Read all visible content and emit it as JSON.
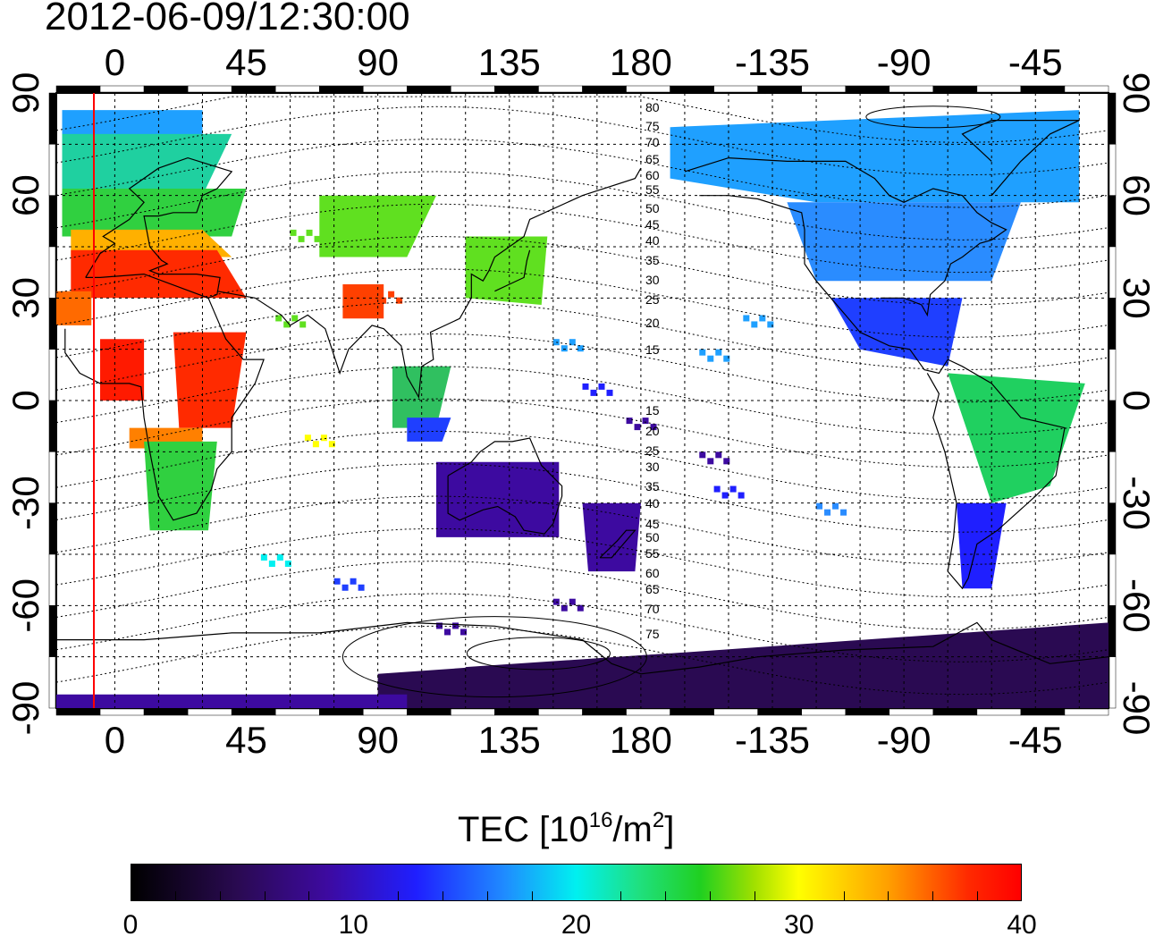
{
  "timestamp": "2012-06-09/12:30:00",
  "map": {
    "lon_labels": [
      "0",
      "45",
      "90",
      "135",
      "180",
      "-135",
      "-90",
      "-45"
    ],
    "lat_labels_left": [
      "90",
      "60",
      "30",
      "0",
      "-30",
      "-60",
      "-90"
    ],
    "lat_labels_right": [
      "90",
      "60",
      "30",
      "0",
      "-30",
      "-60",
      "-90"
    ],
    "contour_labels_north": [
      "80",
      "75",
      "70",
      "65",
      "60",
      "55",
      "50",
      "45",
      "40",
      "35",
      "30",
      "25",
      "20",
      "15"
    ],
    "contour_labels_south": [
      "15",
      "20",
      "25",
      "30",
      "35",
      "40",
      "45",
      "50",
      "55",
      "60",
      "65",
      "70",
      "75"
    ],
    "lon_range": [
      -20,
      340
    ],
    "lat_range": [
      -90,
      90
    ],
    "grid": true,
    "colors": {
      "terminator_line": "#ff0000",
      "coastline": "#000000"
    }
  },
  "colorbar": {
    "title": "TEC  [10",
    "title_exponent": "16",
    "title_unit": "/m",
    "title_unit_exponent": "2",
    "title_close": "]",
    "tick_labels": [
      "0",
      "10",
      "20",
      "30",
      "40"
    ],
    "range": [
      0,
      40
    ],
    "colors": [
      "#000000",
      "#3d0aa0",
      "#1f1fff",
      "#00f0f0",
      "#20d020",
      "#ffff00",
      "#ff0000"
    ]
  }
}
